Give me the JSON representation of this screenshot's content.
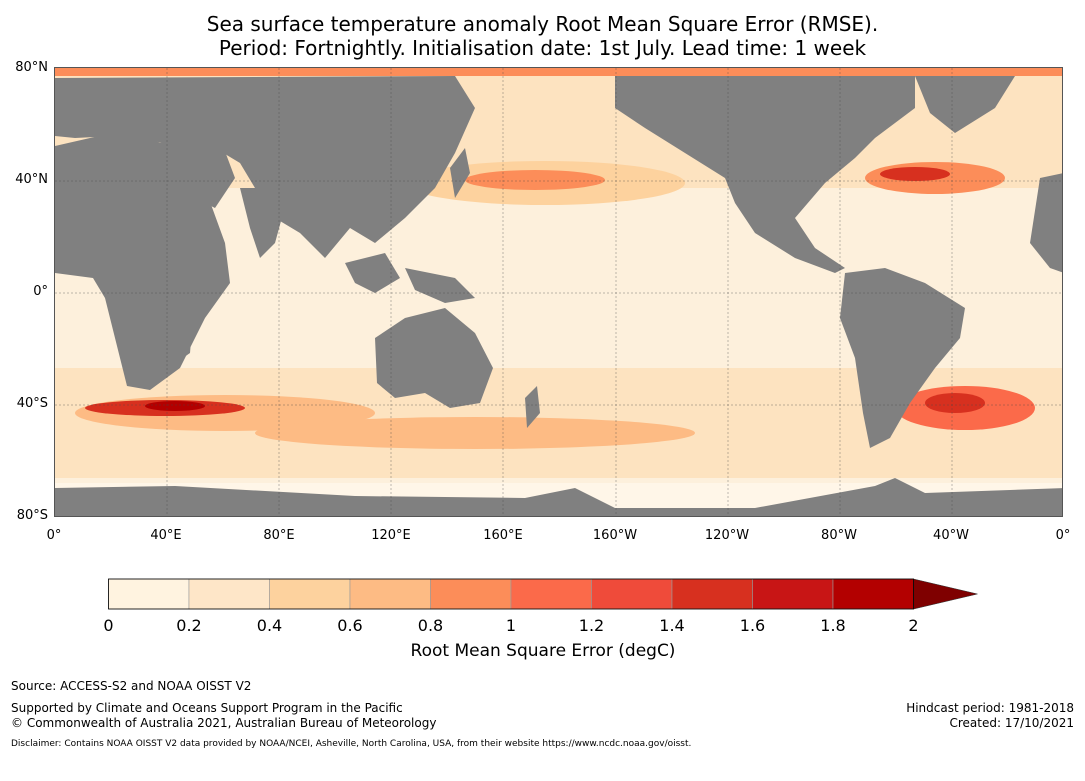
{
  "title_line1": "Sea surface temperature anomaly Root Mean Square Error (RMSE).",
  "title_line2": "Period: Fortnightly. Initialisation date: 1st July. Lead time: 1 week",
  "lat_labels": [
    "80°N",
    "40°N",
    "0°",
    "40°S",
    "80°S"
  ],
  "lon_labels": [
    "0°",
    "40°E",
    "80°E",
    "120°E",
    "160°E",
    "160°W",
    "120°W",
    "80°W",
    "40°W",
    "0°"
  ],
  "colorbar": {
    "label": "Root Mean Square Error (degC)",
    "ticks": [
      "0",
      "0.2",
      "0.4",
      "0.6",
      "0.8",
      "1",
      "1.2",
      "1.4",
      "1.6",
      "1.8",
      "2"
    ],
    "colors": [
      "#fff3e0",
      "#fee6c8",
      "#fdd29e",
      "#fdbb84",
      "#fc8d59",
      "#fb6a4a",
      "#ef4b3a",
      "#d7301f",
      "#c81515",
      "#b30000",
      "#7f0000"
    ]
  },
  "footer": {
    "source": "Source: ACCESS-S2 and NOAA OISST V2",
    "support": "Supported by Climate and Oceans Support Program in the Pacific",
    "copyright": "© Commonwealth of Australia 2021, Australian Bureau of Meteorology",
    "hindcast": "Hindcast period: 1981-2018",
    "created": "Created: 17/10/2021",
    "disclaimer": "Disclaimer: Contains NOAA OISST V2 data provided by NOAA/NCEI, Asheville, North Carolina, USA, from their website https://www.ncdc.noaa.gov/oisst."
  },
  "colors": {
    "land": "#808080",
    "ocean_base": "#fdf0dc"
  }
}
